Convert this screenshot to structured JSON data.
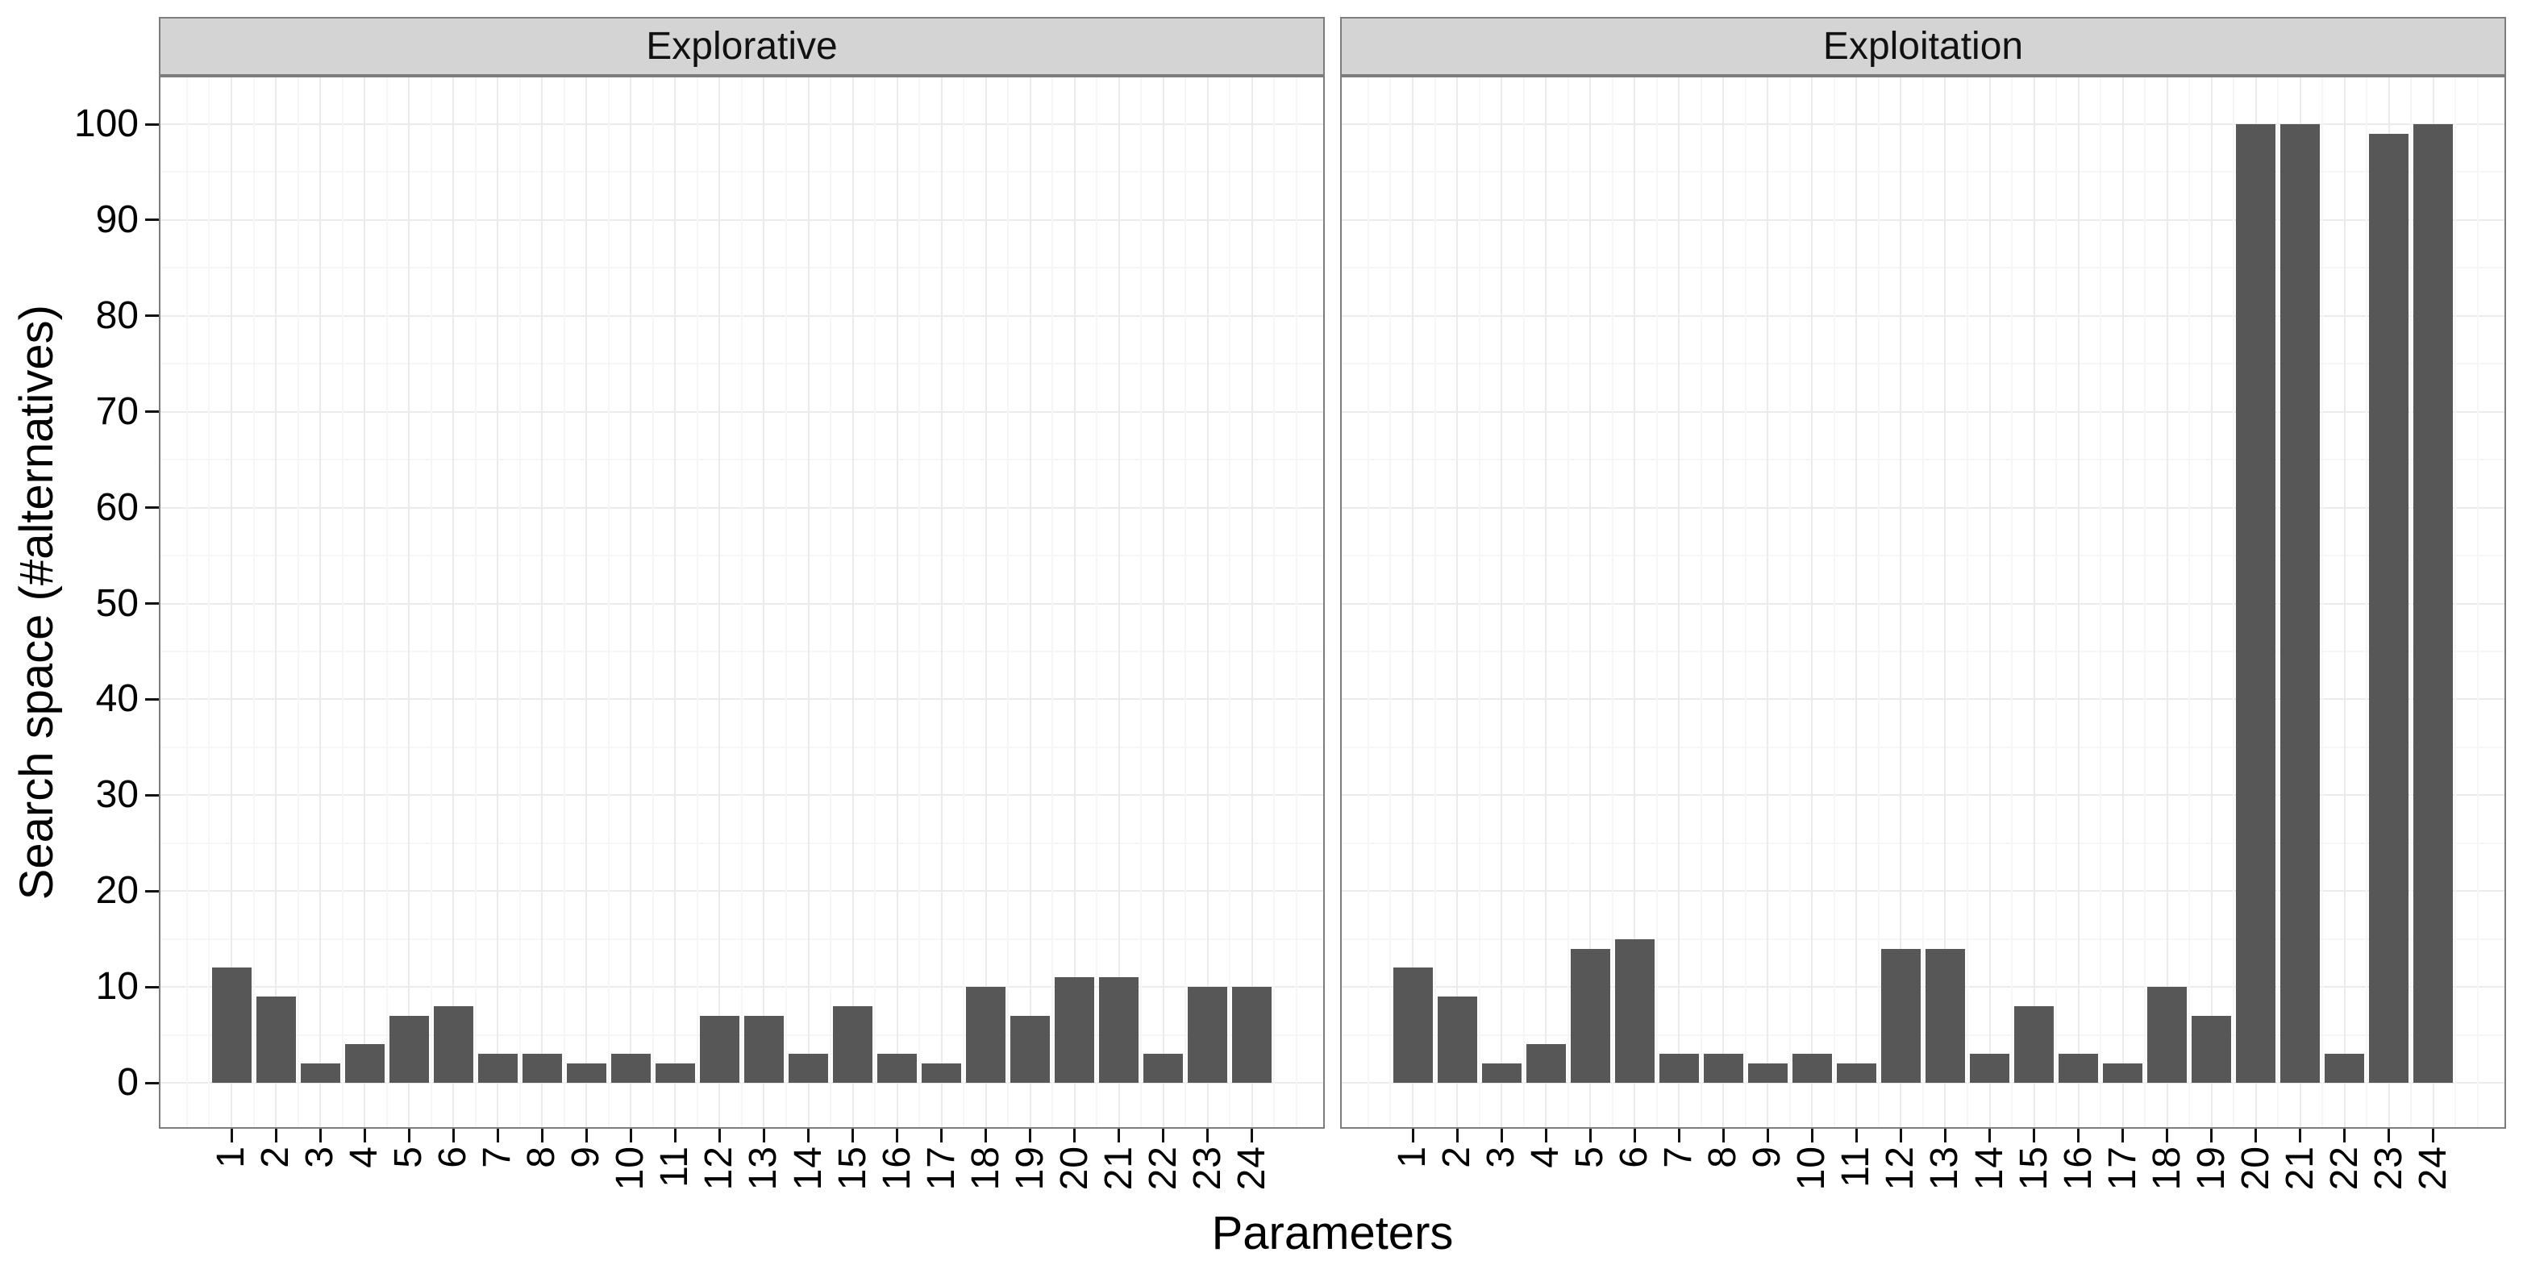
{
  "chart_data": {
    "type": "bar",
    "faceted": true,
    "facet_titles": [
      "Explorative",
      "Exploitation"
    ],
    "categories": [
      "1",
      "2",
      "3",
      "4",
      "5",
      "6",
      "7",
      "8",
      "9",
      "10",
      "11",
      "12",
      "13",
      "14",
      "15",
      "16",
      "17",
      "18",
      "19",
      "20",
      "21",
      "22",
      "23",
      "24"
    ],
    "series": [
      {
        "name": "Explorative",
        "values": [
          12,
          9,
          2,
          4,
          7,
          8,
          3,
          3,
          2,
          3,
          2,
          7,
          7,
          3,
          8,
          3,
          2,
          10,
          7,
          11,
          11,
          3,
          10,
          10
        ]
      },
      {
        "name": "Exploitation",
        "values": [
          12,
          9,
          2,
          4,
          14,
          15,
          3,
          3,
          2,
          3,
          2,
          14,
          14,
          3,
          8,
          3,
          2,
          10,
          7,
          100,
          100,
          3,
          99,
          100
        ]
      }
    ],
    "xlabel": "Parameters",
    "ylabel": "Search space (#alternatives)",
    "ylim": [
      0,
      100
    ],
    "yticks": [
      0,
      10,
      20,
      30,
      40,
      50,
      60,
      70,
      80,
      90,
      100
    ],
    "grid": true,
    "legend": "none",
    "bar_color": "#575757",
    "strip_bg": "#d4d4d4",
    "panel_border": "#7d7d7d"
  }
}
